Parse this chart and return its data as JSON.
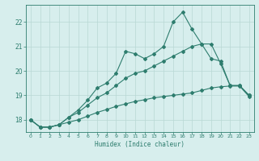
{
  "title": "",
  "xlabel": "Humidex (Indice chaleur)",
  "ylabel": "",
  "bg_color": "#d7eeed",
  "line_color": "#2e7d6e",
  "grid_color": "#b8d8d4",
  "xlim": [
    -0.5,
    23.5
  ],
  "ylim": [
    17.5,
    22.7
  ],
  "yticks": [
    18,
    19,
    20,
    21,
    22
  ],
  "xticks": [
    0,
    1,
    2,
    3,
    4,
    5,
    6,
    7,
    8,
    9,
    10,
    11,
    12,
    13,
    14,
    15,
    16,
    17,
    18,
    19,
    20,
    21,
    22,
    23
  ],
  "x": [
    0,
    1,
    2,
    3,
    4,
    5,
    6,
    7,
    8,
    9,
    10,
    11,
    12,
    13,
    14,
    15,
    16,
    17,
    18,
    19,
    20,
    21,
    22,
    23
  ],
  "line1": [
    18.0,
    17.7,
    17.7,
    17.8,
    18.1,
    18.4,
    18.8,
    19.3,
    19.5,
    19.9,
    20.8,
    20.7,
    20.5,
    20.7,
    21.0,
    22.0,
    22.4,
    21.7,
    21.1,
    20.5,
    20.4,
    19.4,
    19.4,
    19.0
  ],
  "line2": [
    18.0,
    17.7,
    17.7,
    17.8,
    18.1,
    18.3,
    18.6,
    18.9,
    19.1,
    19.4,
    19.7,
    19.9,
    20.0,
    20.2,
    20.4,
    20.6,
    20.8,
    21.0,
    21.1,
    21.1,
    20.3,
    19.4,
    19.4,
    19.0
  ],
  "line3": [
    18.0,
    17.7,
    17.7,
    17.8,
    17.9,
    18.0,
    18.15,
    18.3,
    18.42,
    18.55,
    18.65,
    18.75,
    18.82,
    18.9,
    18.95,
    19.0,
    19.05,
    19.1,
    19.2,
    19.3,
    19.35,
    19.38,
    19.38,
    18.95
  ]
}
